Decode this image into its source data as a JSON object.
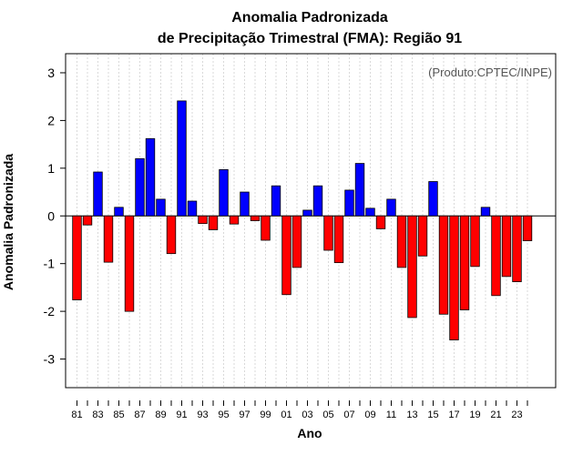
{
  "chart_data": {
    "type": "bar",
    "title_line1": "Anomalia Padronizada",
    "title_line2": "de Precipitação Trimestral (FMA): Região 91",
    "xlabel": "Ano",
    "ylabel": "Anomalia Padronizada",
    "annotation": "(Produto:CPTEC/INPE)",
    "ylim": [
      -3.6,
      3.4
    ],
    "yticks": [
      "3",
      "2",
      "1",
      "0",
      "-1",
      "-2",
      "-3"
    ],
    "ytick_values": [
      3,
      2,
      1,
      0,
      -1,
      -2,
      -3
    ],
    "xtick_labels": [
      "81",
      "83",
      "85",
      "87",
      "89",
      "91",
      "93",
      "95",
      "97",
      "99",
      "01",
      "03",
      "05",
      "07",
      "09",
      "11",
      "13",
      "15",
      "17",
      "19",
      "21",
      "23"
    ],
    "categories": [
      "1981",
      "1982",
      "1983",
      "1984",
      "1985",
      "1986",
      "1987",
      "1988",
      "1989",
      "1990",
      "1991",
      "1992",
      "1993",
      "1994",
      "1995",
      "1996",
      "1997",
      "1998",
      "1999",
      "2000",
      "2001",
      "2002",
      "2003",
      "2004",
      "2005",
      "2006",
      "2007",
      "2008",
      "2009",
      "2010",
      "2011",
      "2012",
      "2013",
      "2014",
      "2015",
      "2016",
      "2017",
      "2018",
      "2019",
      "2020",
      "2021",
      "2022",
      "2023",
      "2024"
    ],
    "values": [
      -1.76,
      -0.19,
      0.92,
      -0.97,
      0.18,
      -2.0,
      1.2,
      1.62,
      0.35,
      -0.79,
      2.41,
      0.31,
      -0.16,
      -0.29,
      0.97,
      -0.17,
      0.5,
      -0.1,
      -0.51,
      0.63,
      -1.65,
      -1.08,
      0.12,
      0.63,
      -0.72,
      -0.98,
      0.54,
      1.1,
      0.16,
      -0.27,
      0.35,
      -1.08,
      -2.13,
      -0.84,
      0.72,
      -2.06,
      -2.6,
      -1.97,
      -1.06,
      0.18,
      -1.67,
      -1.27,
      -1.38,
      -0.52
    ],
    "positive_color": "#0000ff",
    "negative_color": "#ff0000",
    "grid": true
  }
}
